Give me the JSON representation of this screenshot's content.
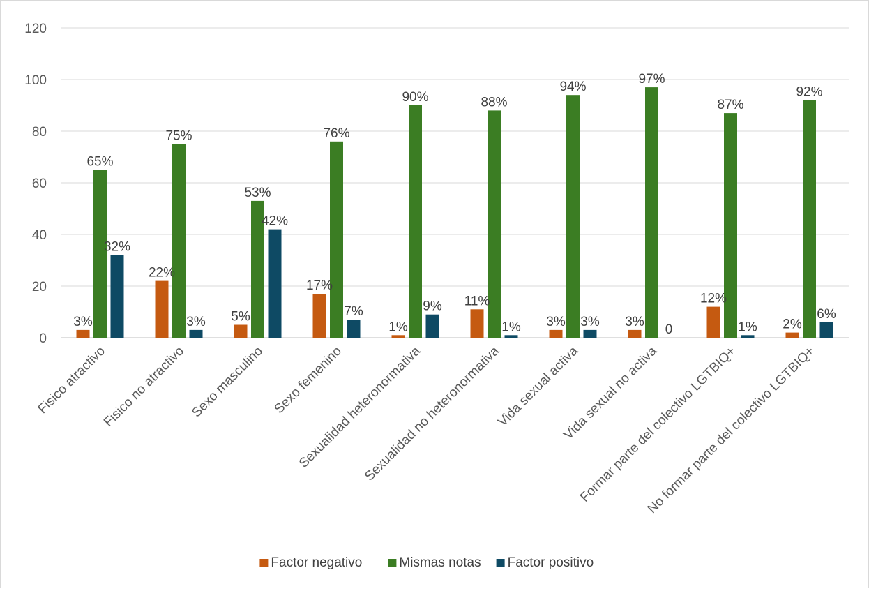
{
  "chart_data": {
    "type": "bar",
    "title": "",
    "xlabel": "",
    "ylabel": "",
    "ylim": [
      0,
      120
    ],
    "yticks": [
      0,
      20,
      40,
      60,
      80,
      100,
      120
    ],
    "grid": true,
    "legend_position": "bottom",
    "categories": [
      "Fisico atractivo",
      "Fisico no atractivo",
      "Sexo masculino",
      "Sexo femenino",
      "Sexualidad heteronormativa",
      "Sexualidad no heteronormativa",
      "Vida sexual activa",
      "Vida sexual no activa",
      "Formar parte del colectivo LGTBIQ+",
      "No formar parte del colectivo LGTBIQ+"
    ],
    "series": [
      {
        "name": "Factor negativo",
        "color": "#c55a11",
        "values": [
          3,
          22,
          5,
          17,
          1,
          11,
          3,
          3,
          12,
          2
        ],
        "labels": [
          "3%",
          "22%",
          "5%",
          "17%",
          "1%",
          "11%",
          "3%",
          "3%",
          "12%",
          "2%"
        ]
      },
      {
        "name": "Mismas notas",
        "color": "#3b7d23",
        "values": [
          65,
          75,
          53,
          76,
          90,
          88,
          94,
          97,
          87,
          92
        ],
        "labels": [
          "65%",
          "75%",
          "53%",
          "76%",
          "90%",
          "88%",
          "94%",
          "97%",
          "87%",
          "92%"
        ]
      },
      {
        "name": "Factor positivo",
        "color": "#0e4a64",
        "values": [
          32,
          3,
          42,
          7,
          9,
          1,
          3,
          0,
          1,
          6
        ],
        "labels": [
          "32%",
          "3%",
          "42%",
          "7%",
          "9%",
          "1%",
          "3%",
          "0",
          "1%",
          "6%"
        ]
      }
    ]
  }
}
